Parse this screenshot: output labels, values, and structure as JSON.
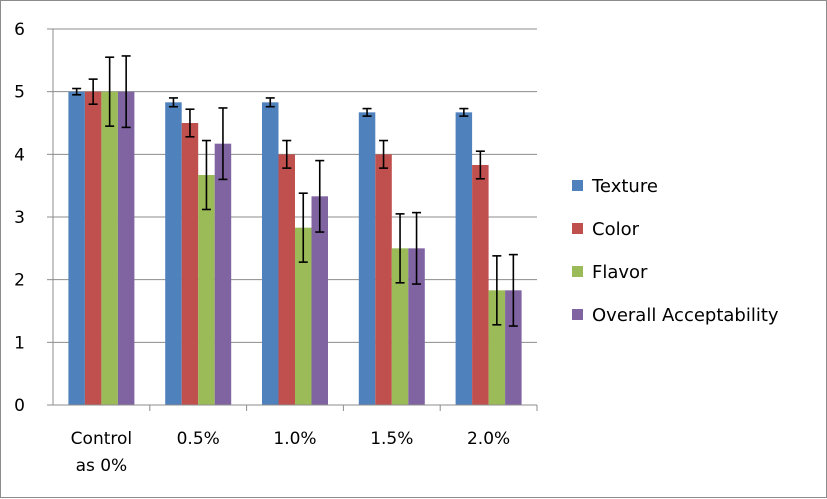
{
  "chart_data": {
    "type": "bar",
    "categories": [
      [
        "Control",
        "as 0%"
      ],
      [
        "0.5%"
      ],
      [
        "1.0%"
      ],
      [
        "1.5%"
      ],
      [
        "2.0%"
      ]
    ],
    "series": [
      {
        "name": "Texture",
        "color": "#4f81bd",
        "values": [
          5.0,
          4.83,
          4.83,
          4.67,
          4.67
        ],
        "errors": [
          0.05,
          0.07,
          0.07,
          0.06,
          0.06
        ]
      },
      {
        "name": "Color",
        "color": "#c0504d",
        "values": [
          5.0,
          4.5,
          4.0,
          4.0,
          3.83
        ],
        "errors": [
          0.2,
          0.22,
          0.22,
          0.22,
          0.22
        ]
      },
      {
        "name": "Flavor",
        "color": "#9bbb59",
        "values": [
          5.0,
          3.67,
          2.83,
          2.5,
          1.83
        ],
        "errors": [
          0.55,
          0.55,
          0.55,
          0.55,
          0.55
        ]
      },
      {
        "name": "Overall Acceptability",
        "color": "#8064a2",
        "values": [
          5.0,
          4.17,
          3.33,
          2.5,
          1.83
        ],
        "errors": [
          0.57,
          0.57,
          0.57,
          0.57,
          0.57
        ]
      }
    ],
    "yticks": [
      "0",
      "1",
      "2",
      "3",
      "4",
      "5",
      "6"
    ],
    "ylim": [
      0,
      6
    ],
    "grid": true,
    "legend": "right"
  }
}
